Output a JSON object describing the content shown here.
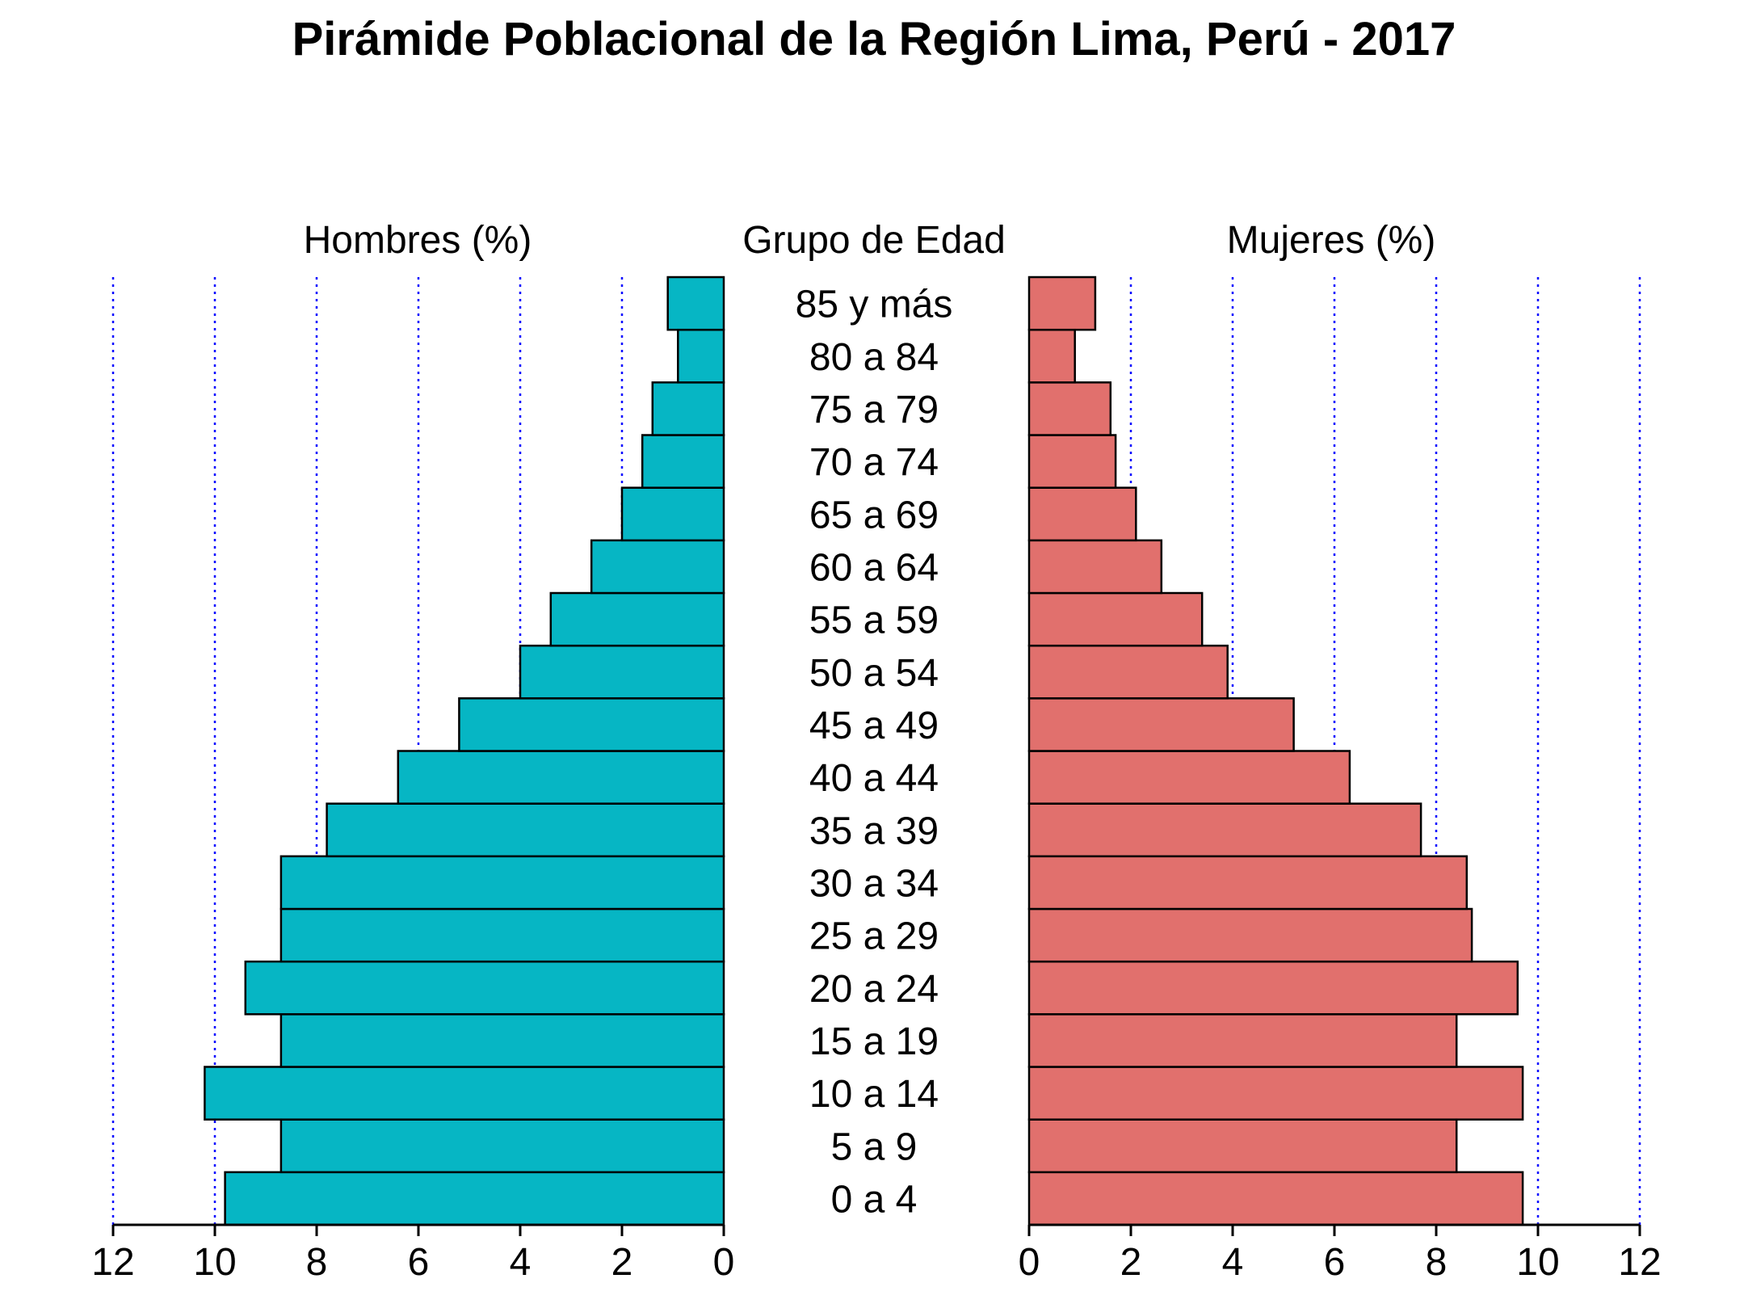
{
  "chart_data": {
    "type": "bar",
    "orientation": "horizontal",
    "title": "Pirámide Poblacional de la Región Lima, Perú - 2017",
    "center_label": "Grupo de Edad",
    "categories": [
      "0 a 4",
      "5 a 9",
      "10 a 14",
      "15 a 19",
      "20 a 24",
      "25 a 29",
      "30 a 34",
      "35 a 39",
      "40 a 44",
      "45 a 49",
      "50 a 54",
      "55 a 59",
      "60 a 64",
      "65 a 69",
      "70 a 74",
      "75 a 79",
      "80 a 84",
      "85 y más"
    ],
    "series": [
      {
        "name": "Hombres (%)",
        "color": "#06B6C4",
        "values": [
          9.8,
          8.7,
          10.2,
          8.7,
          9.4,
          8.7,
          8.7,
          7.8,
          6.4,
          5.2,
          4.0,
          3.4,
          2.6,
          2.0,
          1.6,
          1.4,
          0.9,
          1.1
        ]
      },
      {
        "name": "Mujeres (%)",
        "color": "#E1706D",
        "values": [
          9.7,
          8.4,
          9.7,
          8.4,
          9.6,
          8.7,
          8.6,
          7.7,
          6.3,
          5.2,
          3.9,
          3.4,
          2.6,
          2.1,
          1.7,
          1.6,
          0.9,
          1.3
        ]
      }
    ],
    "xlim": [
      0,
      12
    ],
    "xticks": [
      0,
      2,
      4,
      6,
      8,
      10,
      12
    ],
    "grid_color": "#0000FF",
    "grid_style": "dotted-vertical",
    "bar_edge_color": "#000000",
    "legend": "none"
  }
}
